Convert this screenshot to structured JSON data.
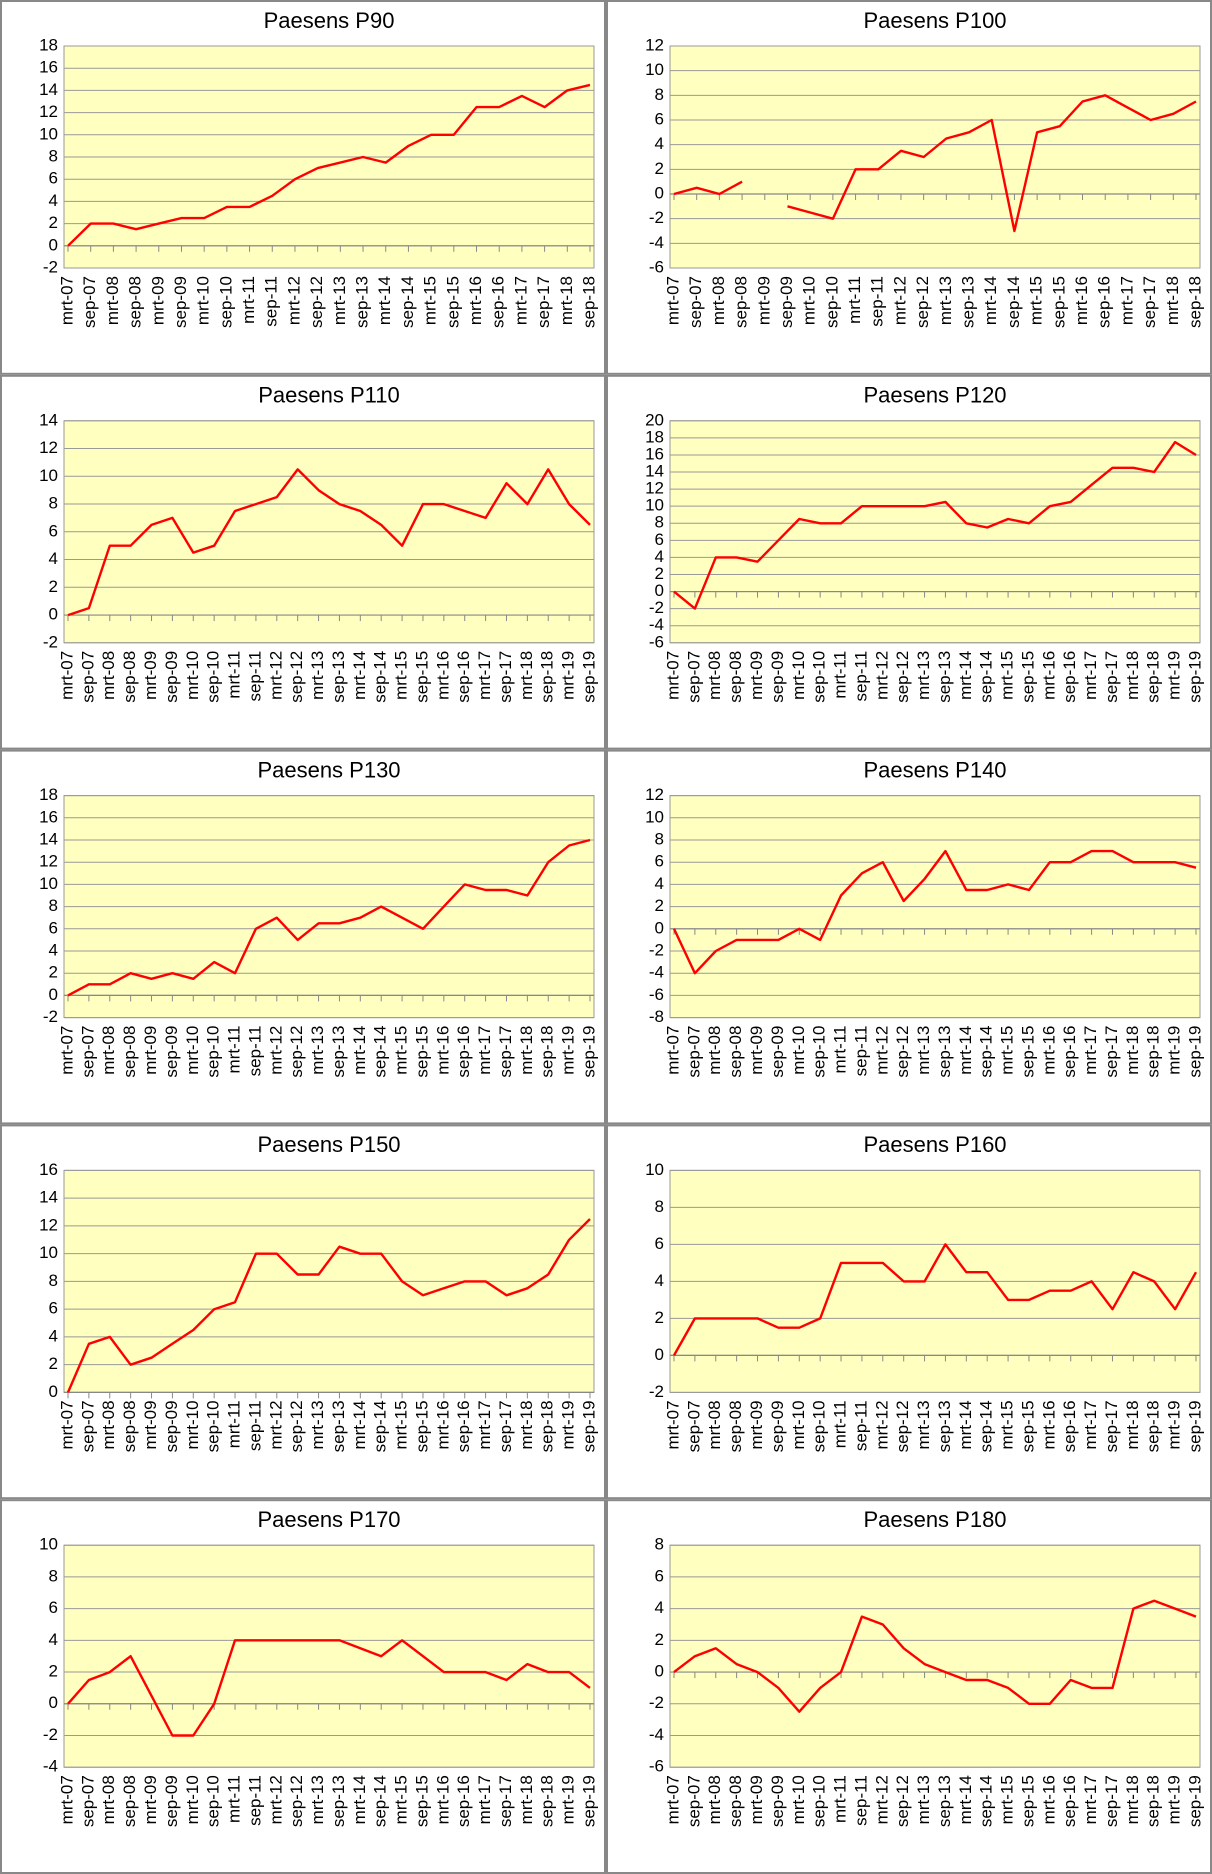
{
  "chart_data": [
    {
      "type": "line",
      "title": "Paesens P90",
      "color": "#ff0000",
      "grid": true,
      "categories": [
        "mrt-07",
        "sep-07",
        "mrt-08",
        "sep-08",
        "mrt-09",
        "sep-09",
        "mrt-10",
        "sep-10",
        "mrt-11",
        "sep-11",
        "mrt-12",
        "sep-12",
        "mrt-13",
        "sep-13",
        "mrt-14",
        "sep-14",
        "mrt-15",
        "sep-15",
        "mrt-16",
        "sep-16",
        "mrt-17",
        "sep-17",
        "mrt-18",
        "sep-18"
      ],
      "values": [
        0,
        2,
        2,
        1.5,
        2,
        2.5,
        2.5,
        3.5,
        3.5,
        4.5,
        6,
        7,
        7.5,
        8,
        7.5,
        9,
        10,
        10,
        12.5,
        12.5,
        13.5,
        12.5,
        14,
        14.5
      ],
      "ylim": [
        -2,
        18
      ],
      "yticks": [
        -2,
        0,
        2,
        4,
        6,
        8,
        10,
        12,
        14,
        16,
        18
      ]
    },
    {
      "type": "line",
      "title": "Paesens P100",
      "color": "#ff0000",
      "grid": true,
      "categories": [
        "mrt-07",
        "sep-07",
        "mrt-08",
        "sep-08",
        "mrt-09",
        "sep-09",
        "mrt-10",
        "sep-10",
        "mrt-11",
        "sep-11",
        "mrt-12",
        "sep-12",
        "mrt-13",
        "sep-13",
        "mrt-14",
        "sep-14",
        "mrt-15",
        "sep-15",
        "mrt-16",
        "sep-16",
        "mrt-17",
        "sep-17",
        "mrt-18",
        "sep-18"
      ],
      "values": [
        0,
        0.5,
        0,
        1,
        null,
        -1,
        -1.5,
        -2,
        2,
        2,
        3.5,
        3,
        4.5,
        5,
        6,
        -3,
        5,
        5.5,
        7.5,
        8,
        7,
        6,
        6.5,
        7.5
      ],
      "ylim": [
        -6,
        12
      ],
      "yticks": [
        -6,
        -4,
        -2,
        0,
        2,
        4,
        6,
        8,
        10,
        12
      ]
    },
    {
      "type": "line",
      "title": "Paesens P110",
      "color": "#ff0000",
      "grid": true,
      "categories": [
        "mrt-07",
        "sep-07",
        "mrt-08",
        "sep-08",
        "mrt-09",
        "sep-09",
        "mrt-10",
        "sep-10",
        "mrt-11",
        "sep-11",
        "mrt-12",
        "sep-12",
        "mrt-13",
        "sep-13",
        "mrt-14",
        "sep-14",
        "mrt-15",
        "sep-15",
        "mrt-16",
        "sep-16",
        "mrt-17",
        "sep-17",
        "mrt-18",
        "sep-18",
        "mrt-19",
        "sep-19"
      ],
      "values": [
        0,
        0.5,
        5,
        5,
        6.5,
        7,
        4.5,
        5,
        7.5,
        8,
        8.5,
        10.5,
        9,
        8,
        7.5,
        6.5,
        5,
        8,
        8,
        7.5,
        7,
        9.5,
        8,
        10.5,
        8,
        6.5
      ],
      "ylim": [
        -2,
        14
      ],
      "yticks": [
        -2,
        0,
        2,
        4,
        6,
        8,
        10,
        12,
        14
      ]
    },
    {
      "type": "line",
      "title": "Paesens P120",
      "color": "#ff0000",
      "grid": true,
      "categories": [
        "mrt-07",
        "sep-07",
        "mrt-08",
        "sep-08",
        "mrt-09",
        "sep-09",
        "mrt-10",
        "sep-10",
        "mrt-11",
        "sep-11",
        "mrt-12",
        "sep-12",
        "mrt-13",
        "sep-13",
        "mrt-14",
        "sep-14",
        "mrt-15",
        "sep-15",
        "mrt-16",
        "sep-16",
        "mrt-17",
        "sep-17",
        "mrt-18",
        "sep-18",
        "mrt-19",
        "sep-19"
      ],
      "values": [
        0,
        -2,
        4,
        4,
        3.5,
        6,
        8.5,
        8,
        8,
        10,
        10,
        10,
        10,
        10.5,
        8,
        7.5,
        8.5,
        8,
        10,
        10.5,
        12.5,
        14.5,
        14.5,
        14,
        17.5,
        16
      ],
      "ylim": [
        -6,
        20
      ],
      "yticks": [
        -6,
        -4,
        -2,
        0,
        2,
        4,
        6,
        8,
        10,
        12,
        14,
        16,
        18,
        20
      ]
    },
    {
      "type": "line",
      "title": "Paesens P130",
      "color": "#ff0000",
      "grid": true,
      "categories": [
        "mrt-07",
        "sep-07",
        "mrt-08",
        "sep-08",
        "mrt-09",
        "sep-09",
        "mrt-10",
        "sep-10",
        "mrt-11",
        "sep-11",
        "mrt-12",
        "sep-12",
        "mrt-13",
        "sep-13",
        "mrt-14",
        "sep-14",
        "mrt-15",
        "sep-15",
        "mrt-16",
        "sep-16",
        "mrt-17",
        "sep-17",
        "mrt-18",
        "sep-18",
        "mrt-19",
        "sep-19"
      ],
      "values": [
        0,
        1,
        1,
        2,
        1.5,
        2,
        1.5,
        3,
        2,
        6,
        7,
        5,
        6.5,
        6.5,
        7,
        8,
        7,
        6,
        8,
        10,
        9.5,
        9.5,
        9,
        12,
        13.5,
        14
      ],
      "ylim": [
        -2,
        18
      ],
      "yticks": [
        -2,
        0,
        2,
        4,
        6,
        8,
        10,
        12,
        14,
        16,
        18
      ]
    },
    {
      "type": "line",
      "title": "Paesens P140",
      "color": "#ff0000",
      "grid": true,
      "categories": [
        "mrt-07",
        "sep-07",
        "mrt-08",
        "sep-08",
        "mrt-09",
        "sep-09",
        "mrt-10",
        "sep-10",
        "mrt-11",
        "sep-11",
        "mrt-12",
        "sep-12",
        "mrt-13",
        "sep-13",
        "mrt-14",
        "sep-14",
        "mrt-15",
        "sep-15",
        "mrt-16",
        "sep-16",
        "mrt-17",
        "sep-17",
        "mrt-18",
        "sep-18",
        "mrt-19",
        "sep-19"
      ],
      "values": [
        0,
        -4,
        -2,
        -1,
        -1,
        -1,
        0,
        -1,
        3,
        5,
        6,
        2.5,
        4.5,
        7,
        3.5,
        3.5,
        4,
        3.5,
        6,
        6,
        7,
        7,
        6,
        6,
        6,
        5.5
      ],
      "ylim": [
        -8,
        12
      ],
      "yticks": [
        -8,
        -6,
        -4,
        -2,
        0,
        2,
        4,
        6,
        8,
        10,
        12
      ]
    },
    {
      "type": "line",
      "title": "Paesens P150",
      "color": "#ff0000",
      "grid": true,
      "categories": [
        "mrt-07",
        "sep-07",
        "mrt-08",
        "sep-08",
        "mrt-09",
        "sep-09",
        "mrt-10",
        "sep-10",
        "mrt-11",
        "sep-11",
        "mrt-12",
        "sep-12",
        "mrt-13",
        "sep-13",
        "mrt-14",
        "sep-14",
        "mrt-15",
        "sep-15",
        "mrt-16",
        "sep-16",
        "mrt-17",
        "sep-17",
        "mrt-18",
        "sep-18",
        "mrt-19",
        "sep-19"
      ],
      "values": [
        0,
        3.5,
        4,
        2,
        2.5,
        3.5,
        4.5,
        6,
        6.5,
        10,
        10,
        8.5,
        8.5,
        10.5,
        10,
        10,
        8,
        7,
        7.5,
        8,
        8,
        7,
        7.5,
        8.5,
        11,
        12.5
      ],
      "ylim": [
        0,
        16
      ],
      "yticks": [
        0,
        2,
        4,
        6,
        8,
        10,
        12,
        14,
        16
      ]
    },
    {
      "type": "line",
      "title": "Paesens P160",
      "color": "#ff0000",
      "grid": true,
      "categories": [
        "mrt-07",
        "sep-07",
        "mrt-08",
        "sep-08",
        "mrt-09",
        "sep-09",
        "mrt-10",
        "sep-10",
        "mrt-11",
        "sep-11",
        "mrt-12",
        "sep-12",
        "mrt-13",
        "sep-13",
        "mrt-14",
        "sep-14",
        "mrt-15",
        "sep-15",
        "mrt-16",
        "sep-16",
        "mrt-17",
        "sep-17",
        "mrt-18",
        "sep-18",
        "mrt-19",
        "sep-19"
      ],
      "values": [
        0,
        2,
        2,
        2,
        2,
        1.5,
        1.5,
        2,
        5,
        5,
        5,
        4,
        4,
        6,
        4.5,
        4.5,
        3,
        3,
        3.5,
        3.5,
        4,
        2.5,
        4.5,
        4,
        2.5,
        4.5
      ],
      "ylim": [
        -2,
        10
      ],
      "yticks": [
        -2,
        0,
        2,
        4,
        6,
        8,
        10
      ]
    },
    {
      "type": "line",
      "title": "Paesens P170",
      "color": "#ff0000",
      "grid": true,
      "categories": [
        "mrt-07",
        "sep-07",
        "mrt-08",
        "sep-08",
        "mrt-09",
        "sep-09",
        "mrt-10",
        "sep-10",
        "mrt-11",
        "sep-11",
        "mrt-12",
        "sep-12",
        "mrt-13",
        "sep-13",
        "mrt-14",
        "sep-14",
        "mrt-15",
        "sep-15",
        "mrt-16",
        "sep-16",
        "mrt-17",
        "sep-17",
        "mrt-18",
        "sep-18",
        "mrt-19",
        "sep-19"
      ],
      "values": [
        0,
        1.5,
        2,
        3,
        0.5,
        -2,
        -2,
        0,
        4,
        4,
        4,
        4,
        4,
        4,
        3.5,
        3,
        4,
        3,
        2,
        2,
        2,
        1.5,
        2.5,
        2,
        2,
        1
      ],
      "ylim": [
        -4,
        10
      ],
      "yticks": [
        -4,
        -2,
        0,
        2,
        4,
        6,
        8,
        10
      ]
    },
    {
      "type": "line",
      "title": "Paesens P180",
      "color": "#ff0000",
      "grid": true,
      "categories": [
        "mrt-07",
        "sep-07",
        "mrt-08",
        "sep-08",
        "mrt-09",
        "sep-09",
        "mrt-10",
        "sep-10",
        "mrt-11",
        "sep-11",
        "mrt-12",
        "sep-12",
        "mrt-13",
        "sep-13",
        "mrt-14",
        "sep-14",
        "mrt-15",
        "sep-15",
        "mrt-16",
        "sep-16",
        "mrt-17",
        "sep-17",
        "mrt-18",
        "sep-18",
        "mrt-19",
        "sep-19"
      ],
      "values": [
        0,
        1,
        1.5,
        0.5,
        0,
        -1,
        -2.5,
        -1,
        0,
        3.5,
        3,
        1.5,
        0.5,
        0,
        -0.5,
        -0.5,
        -1,
        -2,
        -2,
        -0.5,
        -1,
        -1,
        4,
        4.5,
        4,
        3.5
      ],
      "ylim": [
        -6,
        8
      ],
      "yticks": [
        -6,
        -4,
        -2,
        0,
        2,
        4,
        6,
        8
      ]
    }
  ]
}
